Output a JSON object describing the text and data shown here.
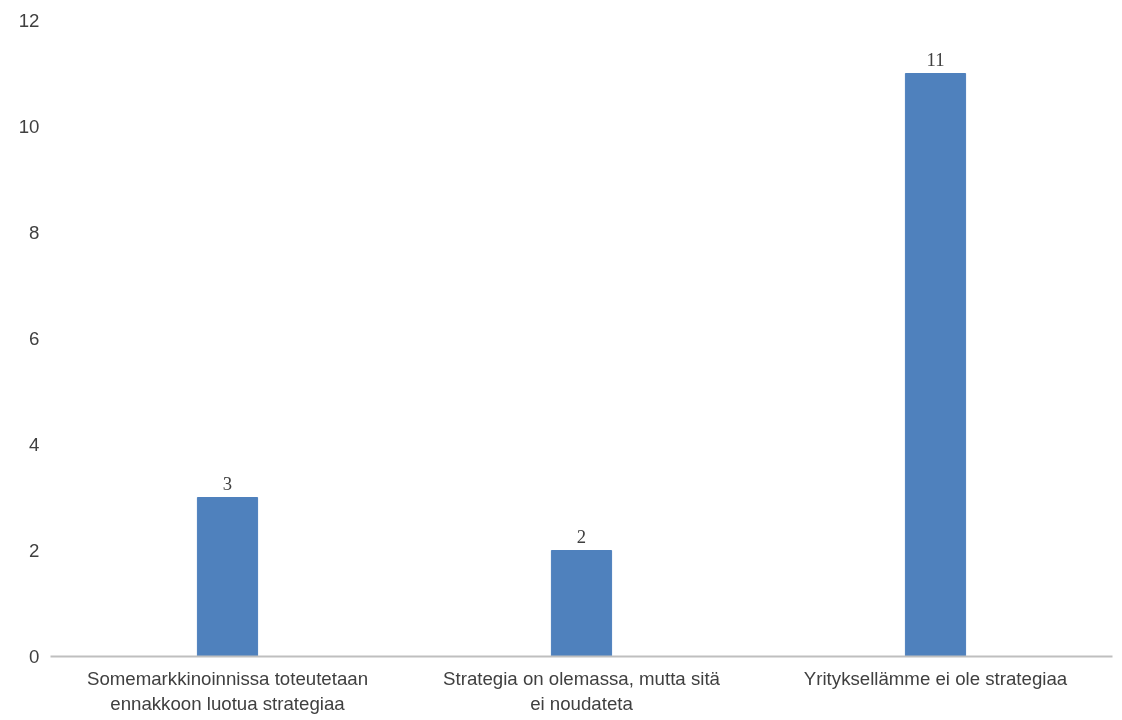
{
  "chart_data": {
    "type": "bar",
    "categories": [
      "Somemarkkinoinnissa toteutetaan ennakkoon luotua strategiaa",
      "Strategia on olemassa, mutta sitä ei noudateta",
      "Yrityksellämme ei ole strategiaa"
    ],
    "values": [
      3,
      2,
      11
    ],
    "color": "#4f81bd",
    "ylim": [
      0,
      12
    ],
    "yticks": [
      0,
      2,
      4,
      6,
      8,
      10,
      12
    ],
    "grid": false,
    "data_labels": true
  }
}
